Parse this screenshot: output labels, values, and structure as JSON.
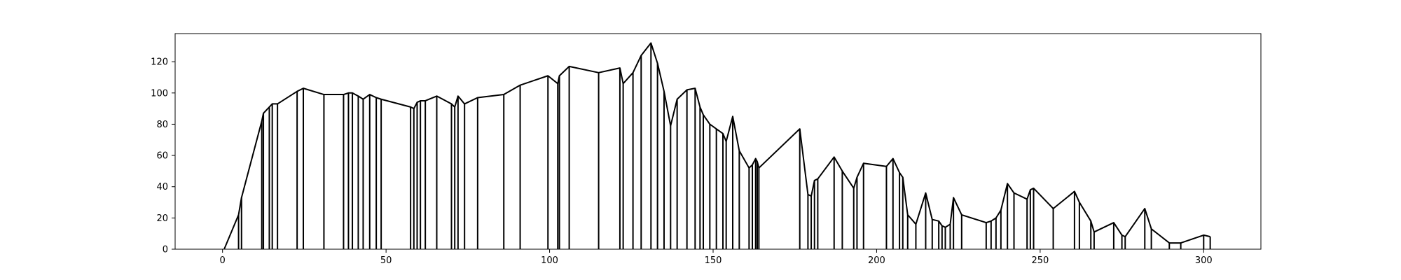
{
  "chart_data": {
    "type": "line",
    "title": "",
    "xlabel": "",
    "ylabel": "",
    "xlim": [
      -14.5,
      317.5
    ],
    "ylim": [
      0,
      138
    ],
    "grid": false,
    "legend": "none",
    "colors": {
      "line": "#000000",
      "axes": "#000000",
      "background": "#ffffff"
    },
    "x_ticks": [
      0,
      50,
      100,
      150,
      200,
      250,
      300
    ],
    "y_ticks": [
      0,
      20,
      40,
      60,
      80,
      100,
      120
    ],
    "x_tick_labels": [
      "0",
      "50",
      "100",
      "150",
      "200",
      "250",
      "300"
    ],
    "y_tick_labels": [
      "0",
      "20",
      "40",
      "60",
      "80",
      "100",
      "120"
    ],
    "series": [
      {
        "x": [
          0.5,
          4.9,
          5.8,
          12.0,
          12.5,
          14.3,
          15.2,
          16.8,
          22.8,
          24.7,
          31.0,
          37.0,
          38.5,
          39.7,
          41.5,
          43.0,
          45.0,
          47.0,
          48.5,
          57.5,
          58.5,
          59.5,
          60.5,
          62.0,
          65.5,
          70.0,
          71.0,
          72.0,
          74.0,
          78.0,
          86.0,
          91.0,
          99.5,
          102.5,
          103.0,
          106.0,
          115.0,
          121.5,
          122.5,
          125.5,
          128.0,
          131.0,
          133.0,
          135.0,
          137.0,
          139.0,
          142.0,
          144.5,
          146.0,
          147.0,
          149.0,
          151.0,
          153.0,
          154.0,
          156.0,
          158.0,
          161.0,
          162.0,
          163.0,
          163.5,
          164.0,
          176.5,
          179.0,
          180.0,
          181.0,
          182.0,
          187.0,
          189.5,
          193.0,
          194.0,
          196.0,
          203.0,
          205.0,
          207.0,
          208.0,
          209.5,
          212.0,
          215.0,
          217.0,
          219.0,
          220.0,
          221.0,
          222.5,
          223.5,
          226.0,
          233.5,
          235.0,
          236.5,
          238.0,
          240.0,
          242.0,
          246.0,
          247.0,
          248.0,
          254.0,
          260.5,
          262.0,
          265.5,
          266.5,
          272.5,
          275.0,
          276.0,
          282.0,
          284.0,
          289.5,
          293.0,
          300.0,
          302.0
        ],
        "y": [
          0,
          22,
          33,
          82,
          87,
          91,
          93,
          93,
          101,
          103,
          99,
          99,
          100,
          100,
          98,
          96,
          99,
          97,
          96,
          91,
          90,
          94,
          95,
          95,
          98,
          93,
          91,
          98,
          93,
          97,
          99,
          105,
          111,
          106,
          111,
          117,
          113,
          116,
          106,
          113,
          124,
          132,
          119,
          101,
          79,
          96,
          102,
          103,
          91,
          86,
          80,
          77,
          74,
          69,
          85,
          63,
          52,
          54,
          58,
          56,
          52,
          77,
          35,
          34,
          44,
          45,
          59,
          50,
          39,
          46,
          55,
          53,
          58,
          49,
          46,
          22,
          16,
          36,
          19,
          18,
          15,
          14,
          16,
          33,
          22,
          17,
          18,
          20,
          25,
          42,
          36,
          32,
          38,
          39,
          26,
          37,
          30,
          18,
          11,
          17,
          9,
          8,
          26,
          13,
          4,
          4,
          9,
          8
        ]
      }
    ]
  }
}
